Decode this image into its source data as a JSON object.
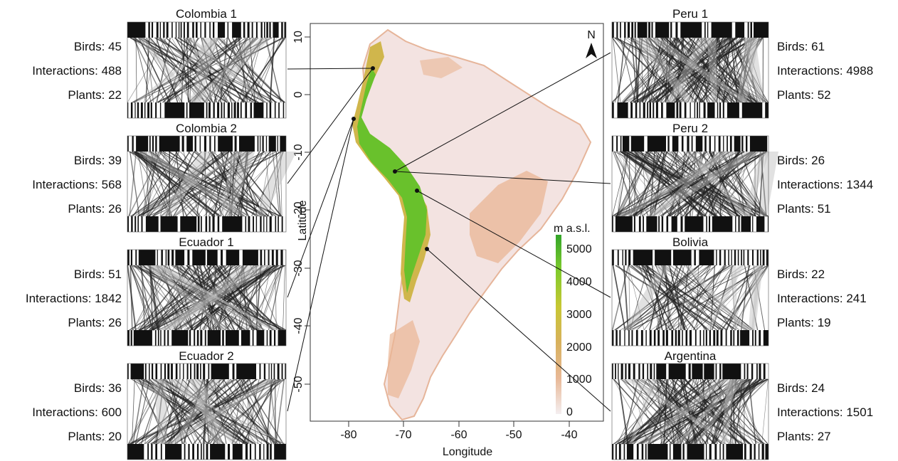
{
  "map": {
    "xlabel": "Longitude",
    "ylabel": "Latitude",
    "north_label": "N",
    "x_ticks": [
      "-80",
      "-70",
      "-60",
      "-50",
      "-40"
    ],
    "y_ticks": [
      "10",
      "0",
      "-10",
      "-20",
      "-30",
      "-40",
      "-50"
    ],
    "legend": {
      "title": "m a.s.l.",
      "ticks": [
        "5000",
        "4000",
        "3000",
        "2000",
        "1000",
        "0"
      ],
      "colors": [
        "#f4eef0",
        "#e8b896",
        "#d8b15c",
        "#c7c733",
        "#7fcb2c",
        "#33a52a"
      ]
    }
  },
  "networks": [
    {
      "name": "Colombia 1",
      "birds": "Birds: 45",
      "interactions": "Interactions: 488",
      "plants": "Plants: 22",
      "side": "left",
      "density": 0.45
    },
    {
      "name": "Colombia 2",
      "birds": "Birds: 39",
      "interactions": "Interactions: 568",
      "plants": "Plants: 26",
      "side": "left",
      "density": 0.55
    },
    {
      "name": "Ecuador 1",
      "birds": "Birds: 51",
      "interactions": "Interactions: 1842",
      "plants": "Plants: 26",
      "side": "left",
      "density": 0.8
    },
    {
      "name": "Ecuador 2",
      "birds": "Birds: 36",
      "interactions": "Interactions: 600",
      "plants": "Plants: 20",
      "side": "left",
      "density": 0.55
    },
    {
      "name": "Peru 1",
      "birds": "Birds: 61",
      "interactions": "Interactions: 4988",
      "plants": "Plants: 52",
      "side": "right",
      "density": 1.0
    },
    {
      "name": "Peru 2",
      "birds": "Birds: 26",
      "interactions": "Interactions: 1344",
      "plants": "Plants: 51",
      "side": "right",
      "density": 0.85
    },
    {
      "name": "Bolivia",
      "birds": "Birds: 22",
      "interactions": "Interactions: 241",
      "plants": "Plants: 19",
      "side": "right",
      "density": 0.35
    },
    {
      "name": "Argentina",
      "birds": "Birds: 24",
      "interactions": "Interactions: 1501",
      "plants": "Plants: 27",
      "side": "right",
      "density": 0.75
    }
  ]
}
